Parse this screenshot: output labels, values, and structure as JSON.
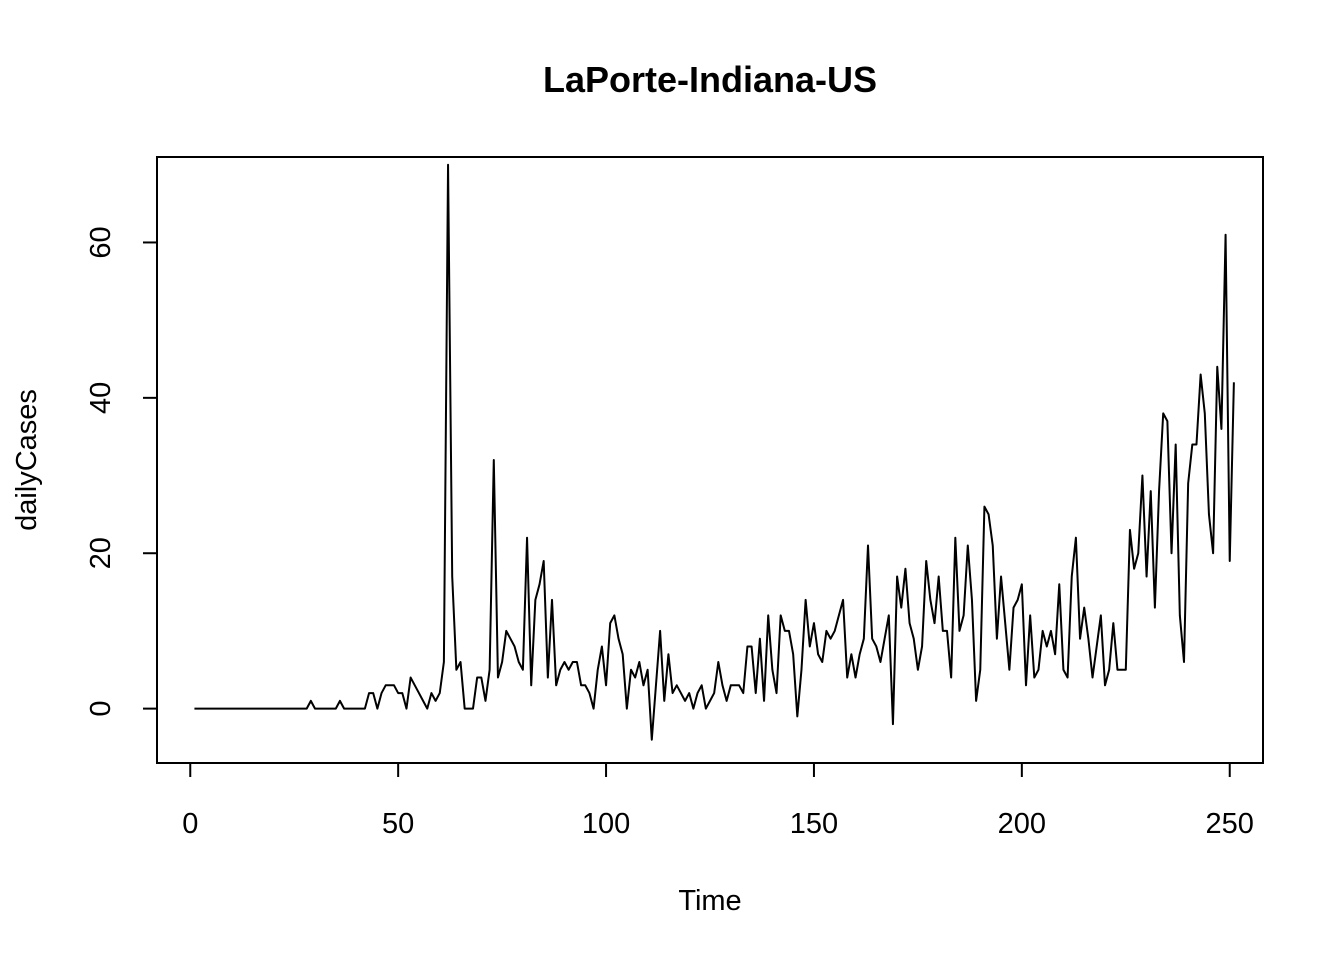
{
  "chart_data": {
    "type": "line",
    "title": "LaPorte-Indiana-US",
    "xlabel": "Time",
    "ylabel": "dailyCases",
    "xlim": [
      -8,
      258
    ],
    "ylim": [
      -7,
      71
    ],
    "xticks": [
      0,
      50,
      100,
      150,
      200,
      250
    ],
    "yticks": [
      0,
      20,
      40,
      60
    ],
    "grid": false,
    "line_color": "#000000",
    "series": [
      {
        "values": [
          0,
          0,
          0,
          0,
          0,
          0,
          0,
          0,
          0,
          0,
          0,
          0,
          0,
          0,
          0,
          0,
          0,
          0,
          0,
          0,
          0,
          0,
          0,
          0,
          0,
          0,
          0,
          0,
          1,
          0,
          0,
          0,
          0,
          0,
          0,
          1,
          0,
          0,
          0,
          0,
          0,
          0,
          2,
          2,
          0,
          2,
          3,
          3,
          3,
          2,
          2,
          0,
          4,
          3,
          2,
          1,
          0,
          2,
          1,
          2,
          6,
          70,
          17,
          5,
          6,
          0,
          0,
          0,
          4,
          4,
          1,
          5,
          32,
          4,
          6,
          10,
          9,
          8,
          6,
          5,
          22,
          3,
          14,
          16,
          19,
          4,
          14,
          3,
          5,
          6,
          5,
          6,
          6,
          3,
          3,
          2,
          0,
          5,
          8,
          3,
          11,
          12,
          9,
          7,
          0,
          5,
          4,
          6,
          3,
          5,
          -4,
          3,
          10,
          1,
          7,
          2,
          3,
          2,
          1,
          2,
          0,
          2,
          3,
          0,
          1,
          2,
          6,
          3,
          1,
          3,
          3,
          3,
          2,
          8,
          8,
          2,
          9,
          1,
          12,
          5,
          2,
          12,
          10,
          10,
          7,
          -1,
          5,
          14,
          8,
          11,
          7,
          6,
          10,
          9,
          10,
          12,
          14,
          4,
          7,
          4,
          7,
          9,
          21,
          9,
          8,
          6,
          9,
          12,
          -2,
          17,
          13,
          18,
          11,
          9,
          5,
          8,
          19,
          14,
          11,
          17,
          10,
          10,
          4,
          22,
          10,
          12,
          21,
          14,
          1,
          5,
          26,
          25,
          21,
          9,
          17,
          11,
          5,
          13,
          14,
          16,
          3,
          12,
          4,
          5,
          10,
          8,
          10,
          7,
          16,
          5,
          4,
          17,
          22,
          9,
          13,
          9,
          4,
          8,
          12,
          3,
          5,
          11,
          5,
          5,
          5,
          23,
          18,
          20,
          30,
          17,
          28,
          13,
          28,
          38,
          37,
          20,
          34,
          12,
          6,
          29,
          34,
          34,
          43,
          38,
          25,
          20,
          44,
          36,
          61,
          19,
          42
        ]
      }
    ]
  }
}
